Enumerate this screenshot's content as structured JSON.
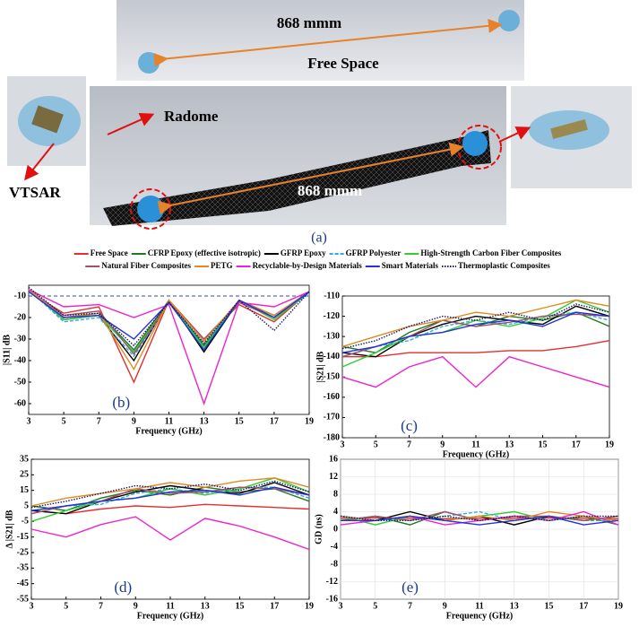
{
  "figure": {
    "distance_top": "868 mmm",
    "free_space": "Free Space",
    "radome": "Radome",
    "vtsar": "VTSAR",
    "distance_bottom": "868 mmm",
    "panel_a": "(a)"
  },
  "legend": {
    "items": [
      {
        "name": "Free Space",
        "color": "#e03030",
        "style": "solid"
      },
      {
        "name": "CFRP Epoxy (effective isotropic)",
        "color": "#1f7a1f",
        "style": "solid"
      },
      {
        "name": "GFRP Epoxy",
        "color": "#000000",
        "style": "solid"
      },
      {
        "name": "GFRP Polyester",
        "color": "#33aadd",
        "style": "dashed"
      },
      {
        "name": "High-Strength Carbon Fiber Composites",
        "color": "#33cc33",
        "style": "solid"
      },
      {
        "name": "Natural Fiber Composites",
        "color": "#a0506a",
        "style": "solid"
      },
      {
        "name": "PETG",
        "color": "#e08a20",
        "style": "solid"
      },
      {
        "name": "Recyclable-by-Design Materials",
        "color": "#ee22cc",
        "style": "solid"
      },
      {
        "name": "Smart Materials",
        "color": "#2233dd",
        "style": "solid"
      },
      {
        "name": "Thermoplastic Composites",
        "color": "#1a1a66",
        "style": "dotted"
      }
    ]
  },
  "chart_data": [
    {
      "type": "line",
      "panel_label": "(b)",
      "xlabel": "Frequency (GHz)",
      "ylabel": "|S11| dB",
      "x": [
        3,
        5,
        7,
        9,
        11,
        13,
        15,
        17,
        19
      ],
      "xlim": [
        3,
        19
      ],
      "xticks": [
        3,
        5,
        7,
        9,
        11,
        13,
        15,
        17,
        19
      ],
      "ylim": [
        -65,
        -5
      ],
      "yticks": [
        -60,
        -50,
        -40,
        -30,
        -20,
        -10
      ],
      "grid": false,
      "reference_line": {
        "value": -10,
        "color": "#3344cc"
      },
      "series": [
        {
          "values": [
            -8,
            -18,
            -15,
            -50,
            -12,
            -30,
            -14,
            -22,
            -8
          ]
        },
        {
          "values": [
            -7,
            -20,
            -18,
            -35,
            -12,
            -33,
            -12,
            -20,
            -8
          ]
        },
        {
          "values": [
            -7,
            -21,
            -19,
            -40,
            -12,
            -36,
            -12,
            -19,
            -8
          ]
        },
        {
          "values": [
            -7,
            -22,
            -20,
            -38,
            -13,
            -32,
            -13,
            -20,
            -9
          ]
        },
        {
          "values": [
            -7,
            -21,
            -19,
            -36,
            -13,
            -34,
            -12,
            -21,
            -8
          ]
        },
        {
          "values": [
            -7,
            -19,
            -17,
            -37,
            -13,
            -30,
            -13,
            -20,
            -8
          ]
        },
        {
          "values": [
            -7,
            -20,
            -18,
            -44,
            -12,
            -31,
            -12,
            -19,
            -8
          ]
        },
        {
          "values": [
            -7,
            -15,
            -14,
            -20,
            -14,
            -60,
            -13,
            -15,
            -8
          ]
        },
        {
          "values": [
            -8,
            -20,
            -19,
            -30,
            -13,
            -35,
            -12,
            -20,
            -8
          ]
        },
        {
          "values": [
            -6,
            -19,
            -18,
            -33,
            -13,
            -32,
            -12,
            -26,
            -8
          ]
        }
      ]
    },
    {
      "type": "line",
      "panel_label": "(c)",
      "xlabel": "Frequency (GHz)",
      "ylabel": "|S21| dB",
      "x": [
        3,
        5,
        7,
        9,
        11,
        13,
        15,
        17,
        19
      ],
      "xlim": [
        3,
        19
      ],
      "xticks": [
        3,
        5,
        7,
        9,
        11,
        13,
        15,
        17,
        19
      ],
      "ylim": [
        -180,
        -110
      ],
      "yticks": [
        -180,
        -170,
        -160,
        -150,
        -140,
        -130,
        -120,
        -110
      ],
      "grid": false,
      "series": [
        {
          "values": [
            -140,
            -140,
            -138,
            -138,
            -138,
            -137,
            -137,
            -135,
            -132
          ]
        },
        {
          "values": [
            -135,
            -138,
            -128,
            -122,
            -125,
            -120,
            -122,
            -118,
            -125
          ]
        },
        {
          "values": [
            -138,
            -140,
            -130,
            -124,
            -120,
            -122,
            -124,
            -115,
            -120
          ]
        },
        {
          "values": [
            -140,
            -135,
            -132,
            -125,
            -122,
            -124,
            -120,
            -118,
            -122
          ]
        },
        {
          "values": [
            -145,
            -138,
            -130,
            -128,
            -122,
            -125,
            -121,
            -112,
            -118
          ]
        },
        {
          "values": [
            -140,
            -135,
            -130,
            -122,
            -125,
            -123,
            -120,
            -119,
            -120
          ]
        },
        {
          "values": [
            -135,
            -130,
            -125,
            -122,
            -118,
            -120,
            -116,
            -112,
            -115
          ]
        },
        {
          "values": [
            -150,
            -155,
            -145,
            -140,
            -155,
            -140,
            -145,
            -150,
            -155
          ]
        },
        {
          "values": [
            -138,
            -135,
            -130,
            -128,
            -124,
            -122,
            -125,
            -118,
            -120
          ]
        },
        {
          "values": [
            -136,
            -132,
            -125,
            -120,
            -122,
            -118,
            -122,
            -114,
            -118
          ]
        }
      ]
    },
    {
      "type": "line",
      "panel_label": "(d)",
      "xlabel": "Frequency (GHz)",
      "ylabel": "Δ |S21| dB",
      "x": [
        3,
        5,
        7,
        9,
        11,
        13,
        15,
        17,
        19
      ],
      "xlim": [
        3,
        19
      ],
      "xticks": [
        3,
        5,
        7,
        9,
        11,
        13,
        15,
        17,
        19
      ],
      "ylim": [
        -55,
        35
      ],
      "yticks": [
        -55,
        -45,
        -35,
        -25,
        -15,
        -5,
        5,
        15,
        25,
        35
      ],
      "grid": false,
      "series": [
        {
          "values": [
            2,
            0,
            3,
            5,
            4,
            6,
            5,
            4,
            3
          ]
        },
        {
          "values": [
            5,
            2,
            10,
            15,
            12,
            17,
            14,
            16,
            8
          ]
        },
        {
          "values": [
            2,
            0,
            8,
            14,
            18,
            15,
            13,
            20,
            12
          ]
        },
        {
          "values": [
            0,
            5,
            6,
            13,
            16,
            13,
            17,
            17,
            10
          ]
        },
        {
          "values": [
            -5,
            2,
            8,
            10,
            16,
            12,
            16,
            23,
            14
          ]
        },
        {
          "values": [
            0,
            5,
            8,
            16,
            13,
            14,
            17,
            16,
            12
          ]
        },
        {
          "values": [
            5,
            10,
            13,
            16,
            20,
            17,
            21,
            23,
            17
          ]
        },
        {
          "values": [
            -10,
            -15,
            -7,
            -2,
            -17,
            -3,
            -8,
            -15,
            -23
          ]
        },
        {
          "values": [
            2,
            5,
            8,
            10,
            14,
            15,
            12,
            17,
            12
          ]
        },
        {
          "values": [
            4,
            8,
            13,
            18,
            16,
            19,
            15,
            21,
            14
          ]
        }
      ]
    },
    {
      "type": "line",
      "panel_label": "(e)",
      "xlabel": "Frequency (GHz)",
      "ylabel": "GD (ns)",
      "x": [
        3,
        5,
        7,
        9,
        11,
        13,
        15,
        17,
        19
      ],
      "xlim": [
        3,
        19
      ],
      "xticks": [
        3,
        5,
        7,
        9,
        11,
        13,
        15,
        17,
        19
      ],
      "ylim": [
        -16,
        16
      ],
      "yticks": [
        -16,
        -12,
        -8,
        -4,
        0,
        4,
        8,
        12,
        16
      ],
      "grid": true,
      "series": [
        {
          "values": [
            2.5,
            2.6,
            2.5,
            2.4,
            2.5,
            2.5,
            2.6,
            2.5,
            2.4
          ]
        },
        {
          "values": [
            2,
            3,
            1,
            4,
            2,
            3,
            2,
            3,
            1
          ]
        },
        {
          "values": [
            3,
            2,
            4,
            2,
            3,
            1,
            3,
            2,
            3
          ]
        },
        {
          "values": [
            2,
            3,
            2,
            3,
            4,
            2,
            3,
            2,
            2
          ]
        },
        {
          "values": [
            3,
            1,
            3,
            2,
            3,
            4,
            2,
            3,
            2
          ]
        },
        {
          "values": [
            2,
            3,
            2,
            4,
            2,
            3,
            3,
            2,
            3
          ]
        },
        {
          "values": [
            3,
            2,
            3,
            2,
            3,
            2,
            4,
            3,
            2
          ]
        },
        {
          "values": [
            1,
            2,
            3,
            1,
            2,
            3,
            2,
            4,
            1
          ]
        },
        {
          "values": [
            2,
            2,
            3,
            2,
            1,
            2,
            3,
            1,
            2
          ]
        },
        {
          "values": [
            3,
            2,
            2,
            3,
            2,
            3,
            2,
            3,
            3
          ]
        }
      ]
    }
  ]
}
